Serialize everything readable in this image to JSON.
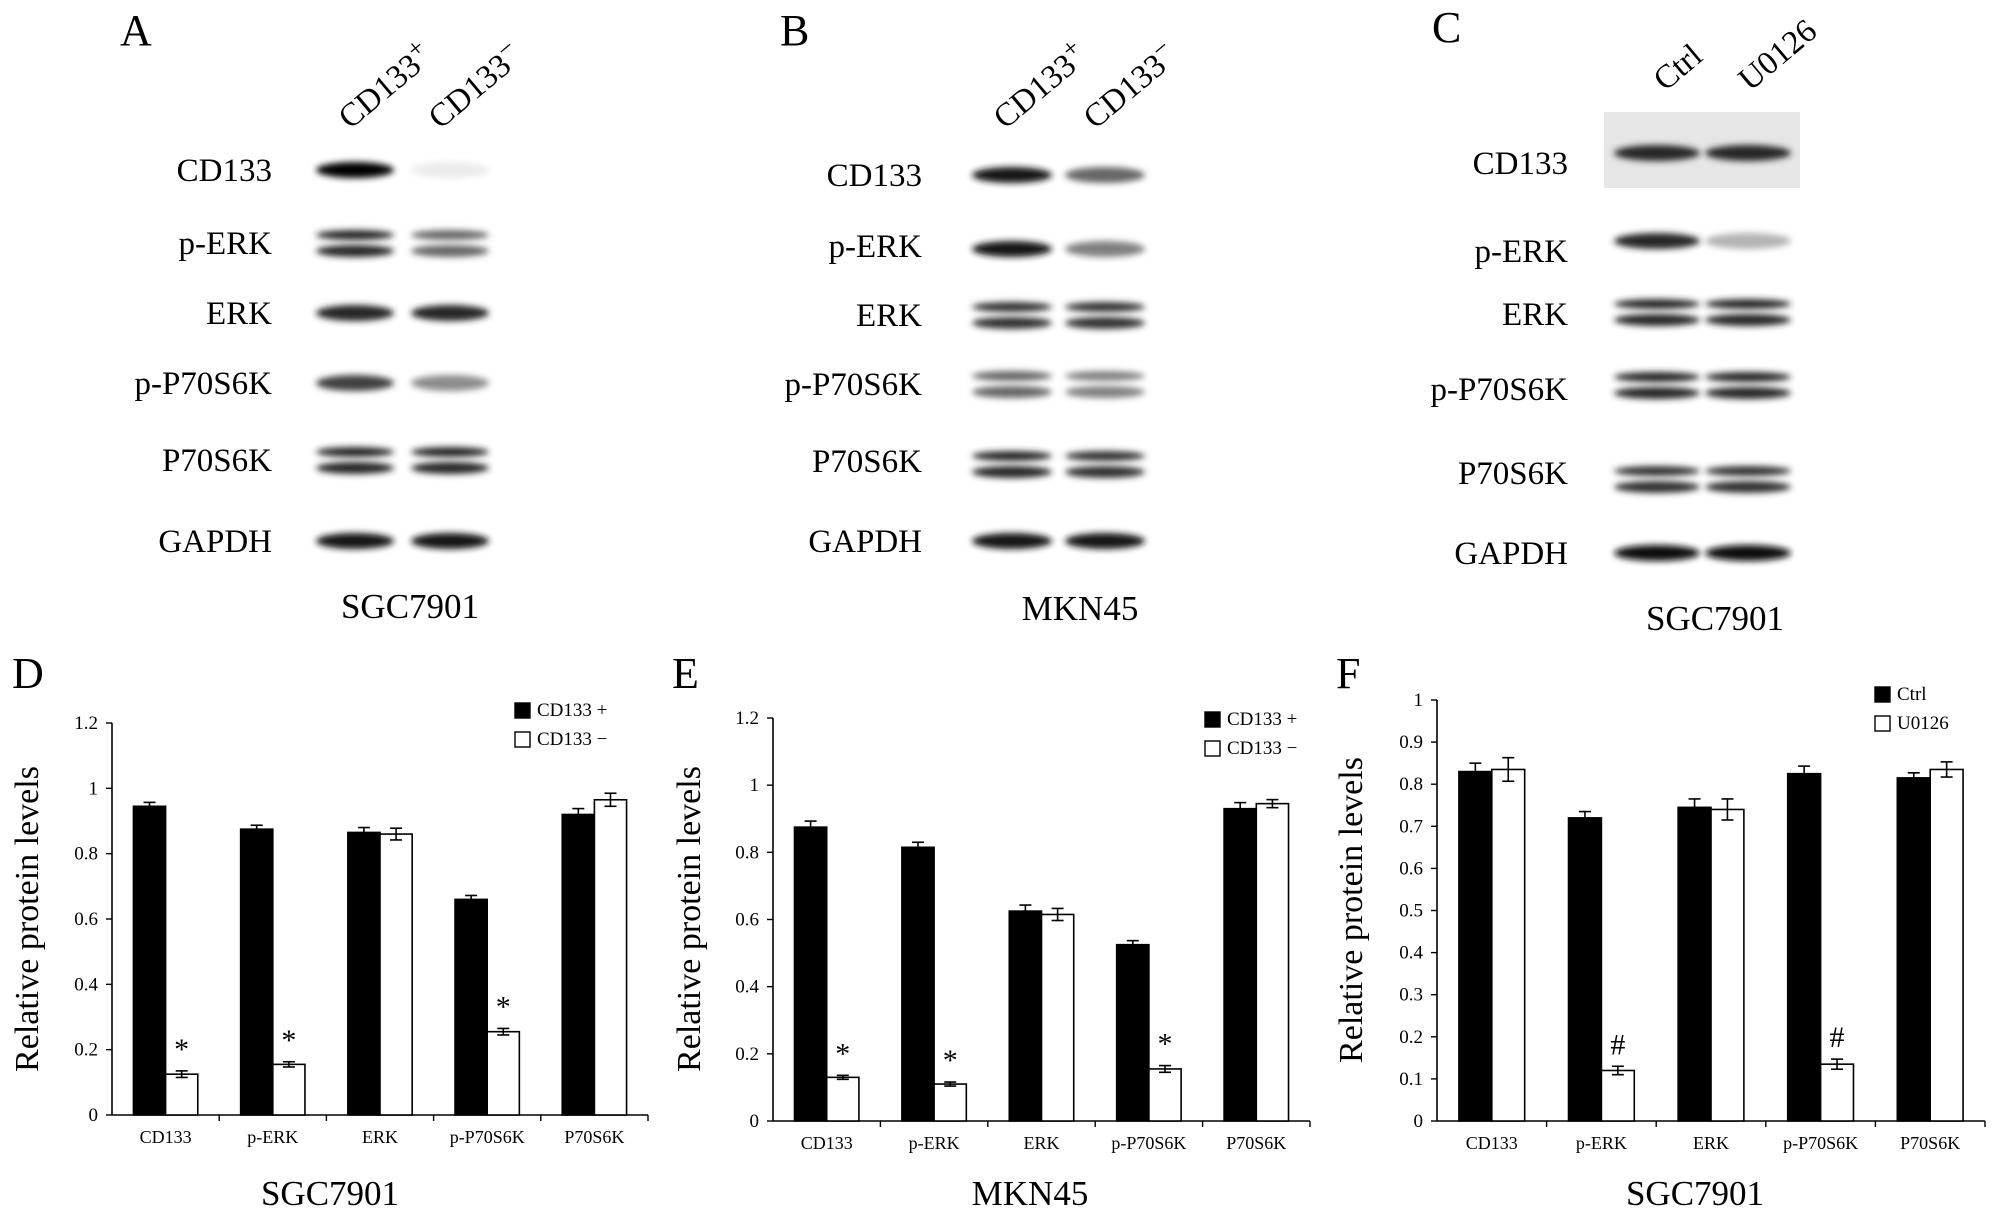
{
  "panels_blot": [
    {
      "letter": "A",
      "cell_line": "SGC7901",
      "lanes": [
        "CD133+",
        "CD133−"
      ],
      "proteins": [
        "CD133",
        "p-ERK",
        "ERK",
        "p-P70S6K",
        "P70S6K",
        "GAPDH"
      ],
      "band_intensity": [
        [
          1.0,
          0.08
        ],
        [
          0.85,
          0.6
        ],
        [
          0.85,
          0.85
        ],
        [
          0.75,
          0.45
        ],
        [
          0.85,
          0.85
        ],
        [
          0.9,
          0.9
        ]
      ],
      "double_bands": [
        false,
        true,
        false,
        false,
        true,
        false
      ]
    },
    {
      "letter": "B",
      "cell_line": "MKN45",
      "lanes": [
        "CD133+",
        "CD133−"
      ],
      "proteins": [
        "CD133",
        "p-ERK",
        "ERK",
        "p-P70S6K",
        "P70S6K",
        "GAPDH"
      ],
      "band_intensity": [
        [
          0.9,
          0.6
        ],
        [
          0.9,
          0.5
        ],
        [
          0.8,
          0.8
        ],
        [
          0.6,
          0.5
        ],
        [
          0.85,
          0.8
        ],
        [
          0.9,
          0.9
        ]
      ],
      "double_bands": [
        false,
        false,
        true,
        true,
        true,
        false
      ]
    },
    {
      "letter": "C",
      "cell_line": "SGC7901",
      "lanes": [
        "Ctrl",
        "U0126"
      ],
      "proteins": [
        "CD133",
        "p-ERK",
        "ERK",
        "p-P70S6K",
        "P70S6K",
        "GAPDH"
      ],
      "band_intensity": [
        [
          0.85,
          0.85
        ],
        [
          0.85,
          0.3
        ],
        [
          0.85,
          0.85
        ],
        [
          0.85,
          0.85
        ],
        [
          0.8,
          0.8
        ],
        [
          0.95,
          0.95
        ]
      ],
      "double_bands": [
        false,
        false,
        true,
        true,
        true,
        false
      ]
    }
  ],
  "chart_data": [
    {
      "letter": "D",
      "type": "bar",
      "title": "SGC7901",
      "ylabel": "Relative protein levels",
      "ylim": [
        0,
        1.2
      ],
      "yticks": [
        "0",
        "0.2",
        "0.4",
        "0.6",
        "0.8",
        "1",
        "1.2"
      ],
      "categories": [
        "CD133",
        "p-ERK",
        "ERK",
        "p-P70S6K",
        "P70S6K"
      ],
      "series": [
        {
          "name": "CD133 +",
          "fill": "#000000",
          "values": [
            0.945,
            0.875,
            0.865,
            0.66,
            0.92
          ],
          "errors": [
            0.012,
            0.012,
            0.015,
            0.012,
            0.018
          ]
        },
        {
          "name": "CD133 −",
          "fill": "#ffffff",
          "values": [
            0.125,
            0.155,
            0.86,
            0.255,
            0.965
          ],
          "errors": [
            0.01,
            0.008,
            0.018,
            0.01,
            0.02
          ]
        }
      ],
      "annotations": [
        "*",
        "*",
        "",
        "*",
        ""
      ],
      "legend": "top-right"
    },
    {
      "letter": "E",
      "type": "bar",
      "title": "MKN45",
      "ylabel": "Relative protein levels",
      "ylim": [
        0,
        1.2
      ],
      "yticks": [
        "0",
        "0.2",
        "0.4",
        "0.6",
        "0.8",
        "1",
        "1.2"
      ],
      "categories": [
        "CD133",
        "p-ERK",
        "ERK",
        "p-P70S6K",
        "P70S6K"
      ],
      "series": [
        {
          "name": "CD133 +",
          "fill": "#000000",
          "values": [
            0.875,
            0.815,
            0.625,
            0.525,
            0.93
          ],
          "errors": [
            0.018,
            0.015,
            0.018,
            0.012,
            0.018
          ]
        },
        {
          "name": "CD133 −",
          "fill": "#ffffff",
          "values": [
            0.13,
            0.11,
            0.615,
            0.155,
            0.945
          ],
          "errors": [
            0.006,
            0.006,
            0.018,
            0.01,
            0.012
          ]
        }
      ],
      "annotations": [
        "*",
        "*",
        "",
        "*",
        ""
      ],
      "legend": "top-right"
    },
    {
      "letter": "F",
      "type": "bar",
      "title": "SGC7901",
      "ylabel": "Relative protein levels",
      "ylim": [
        0,
        1
      ],
      "yticks": [
        "0",
        "0.1",
        "0.2",
        "0.3",
        "0.4",
        "0.5",
        "0.6",
        "0.7",
        "0.8",
        "0.9",
        "1"
      ],
      "categories": [
        "CD133",
        "p-ERK",
        "ERK",
        "p-P70S6K",
        "P70S6K"
      ],
      "series": [
        {
          "name": "Ctrl",
          "fill": "#000000",
          "values": [
            0.83,
            0.72,
            0.745,
            0.825,
            0.815
          ],
          "errors": [
            0.02,
            0.015,
            0.02,
            0.018,
            0.012
          ]
        },
        {
          "name": "U0126",
          "fill": "#ffffff",
          "values": [
            0.835,
            0.12,
            0.74,
            0.135,
            0.835
          ],
          "errors": [
            0.028,
            0.01,
            0.025,
            0.012,
            0.018
          ]
        }
      ],
      "annotations": [
        "",
        "#",
        "",
        "#",
        ""
      ],
      "legend": "top-right"
    }
  ]
}
